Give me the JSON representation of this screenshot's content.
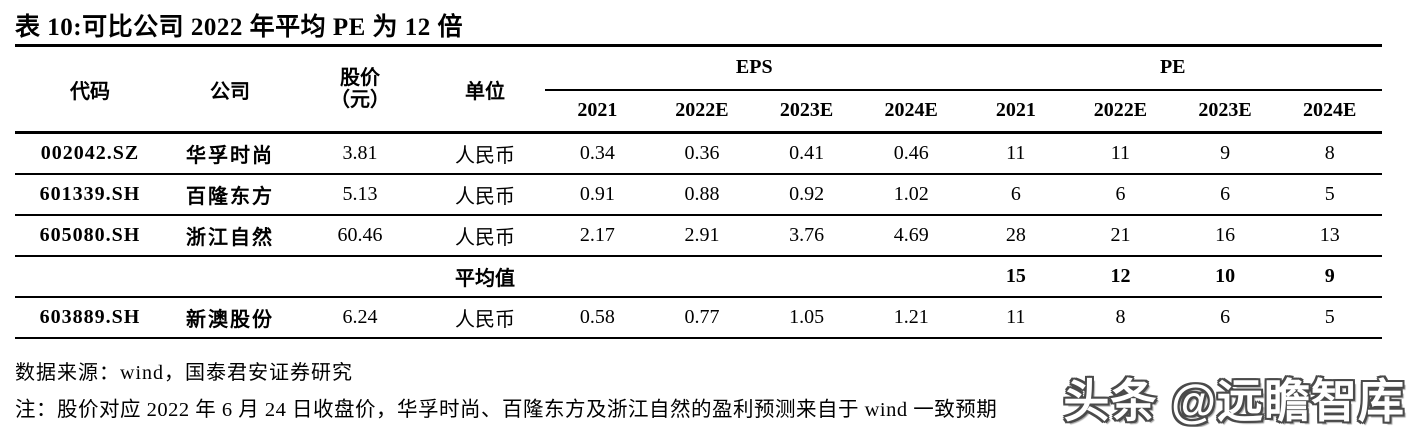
{
  "title": "表 10:可比公司 2022 年平均 PE 为 12 倍",
  "table": {
    "headers": {
      "code": "代码",
      "company": "公司",
      "price_line1": "股价",
      "price_line2": "（元）",
      "unit": "单位",
      "eps_group": "EPS",
      "pe_group": "PE",
      "years": [
        "2021",
        "2022E",
        "2023E",
        "2024E"
      ]
    },
    "rows": [
      {
        "code": "002042.SZ",
        "company": "华孚时尚",
        "price": "3.81",
        "unit": "人民币",
        "eps": [
          "0.34",
          "0.36",
          "0.41",
          "0.46"
        ],
        "pe": [
          "11",
          "11",
          "9",
          "8"
        ]
      },
      {
        "code": "601339.SH",
        "company": "百隆东方",
        "price": "5.13",
        "unit": "人民币",
        "eps": [
          "0.91",
          "0.88",
          "0.92",
          "1.02"
        ],
        "pe": [
          "6",
          "6",
          "6",
          "5"
        ]
      },
      {
        "code": "605080.SH",
        "company": "浙江自然",
        "price": "60.46",
        "unit": "人民币",
        "eps": [
          "2.17",
          "2.91",
          "3.76",
          "4.69"
        ],
        "pe": [
          "28",
          "21",
          "16",
          "13"
        ]
      }
    ],
    "average_row": {
      "label": "平均值",
      "pe": [
        "15",
        "12",
        "10",
        "9"
      ]
    },
    "last_row": {
      "code": "603889.SH",
      "company": "新澳股份",
      "price": "6.24",
      "unit": "人民币",
      "eps": [
        "0.58",
        "0.77",
        "1.05",
        "1.21"
      ],
      "pe": [
        "11",
        "8",
        "6",
        "5"
      ]
    }
  },
  "source": "数据来源：wind，国泰君安证券研究",
  "note": "注：股价对应 2022 年 6 月 24 日收盘价，华孚时尚、百隆东方及浙江自然的盈利预测来自于 wind 一致预期",
  "watermark": "头条 @远瞻智库",
  "colors": {
    "text": "#000000",
    "background": "#ffffff",
    "rule": "#000000",
    "watermark_fill": "#ffffff",
    "watermark_outline": "#4a4a4a"
  }
}
